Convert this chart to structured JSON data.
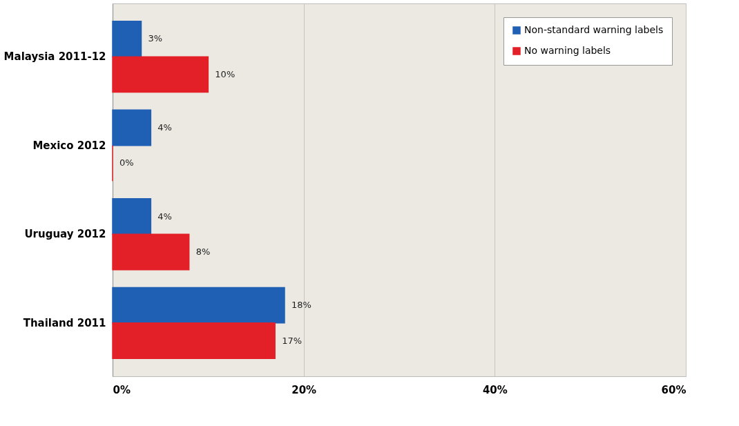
{
  "chart_data": {
    "type": "bar",
    "orientation": "horizontal",
    "categories": [
      "Malaysia 2011-12",
      "Mexico 2012",
      "Uruguay 2012",
      "Thailand 2011"
    ],
    "series": [
      {
        "name": "Non-standard warning labels",
        "color": "#1f5fb4",
        "values": [
          3,
          4,
          4,
          18
        ],
        "value_labels": [
          "3%",
          "4%",
          "4%",
          "18%"
        ]
      },
      {
        "name": "No warning labels",
        "color": "#e32028",
        "values": [
          10,
          0,
          8,
          17
        ],
        "value_labels": [
          "10%",
          "0%",
          "8%",
          "17%"
        ]
      }
    ],
    "xlim": [
      0,
      60
    ],
    "xticks": [
      {
        "value": 0,
        "label": "0%"
      },
      {
        "value": 20,
        "label": "20%"
      },
      {
        "value": 40,
        "label": "40%"
      },
      {
        "value": 60,
        "label": "60%"
      }
    ],
    "grid": "x",
    "legend": "top right"
  }
}
